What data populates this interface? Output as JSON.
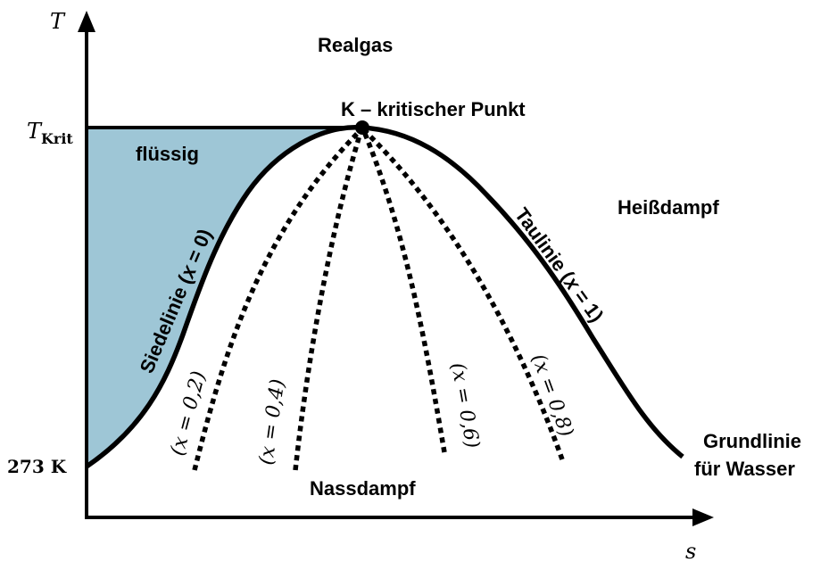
{
  "axes": {
    "y_label": "T",
    "x_label": "s",
    "t_krit_main": "T",
    "t_krit_sub": "Krit",
    "t_273": "273 K"
  },
  "regions": {
    "realgas": "Realgas",
    "critical_point": "K – kritischer Punkt",
    "fluessig": "flüssig",
    "heissdampf": "Heißdampf",
    "nassdampf": "Nassdampf",
    "grundlinie_1": "Grundlinie",
    "grundlinie_2": "für Wasser"
  },
  "curves": {
    "siedelinie": "Siedelinie (𝑥 = 0)",
    "taulinie": "Taulinie (𝑥 = 1)",
    "x02": "(𝑥 = 0,2)",
    "x04": "(𝑥 = 0,4)",
    "x06": "(𝑥 = 0,6)",
    "x08": "(𝑥 = 0,8)"
  },
  "colors": {
    "liquid_fill": "#9ec6d6",
    "line": "#000000"
  }
}
